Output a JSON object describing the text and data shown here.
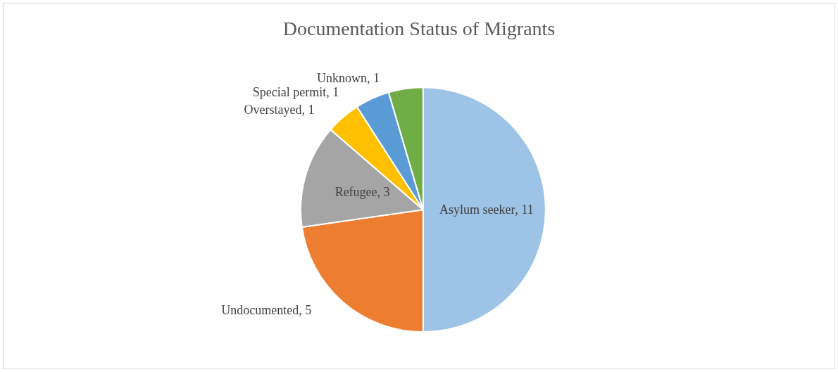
{
  "chart_data": {
    "type": "pie",
    "title": "Documentation Status of Migrants",
    "categories": [
      "Asylum seeker",
      "Undocumented",
      "Refugee",
      "Overstayed",
      "Special permit",
      "Unknown"
    ],
    "values": [
      11,
      5,
      3,
      1,
      1,
      1
    ],
    "colors": [
      "#9dc3e6",
      "#ed7d31",
      "#a5a5a5",
      "#ffc000",
      "#5b9bd5",
      "#70ad47"
    ],
    "value_labels": [
      ", 11",
      ", 5",
      ", 3",
      ", 1",
      ", 1",
      ", 1"
    ],
    "legend": false
  }
}
